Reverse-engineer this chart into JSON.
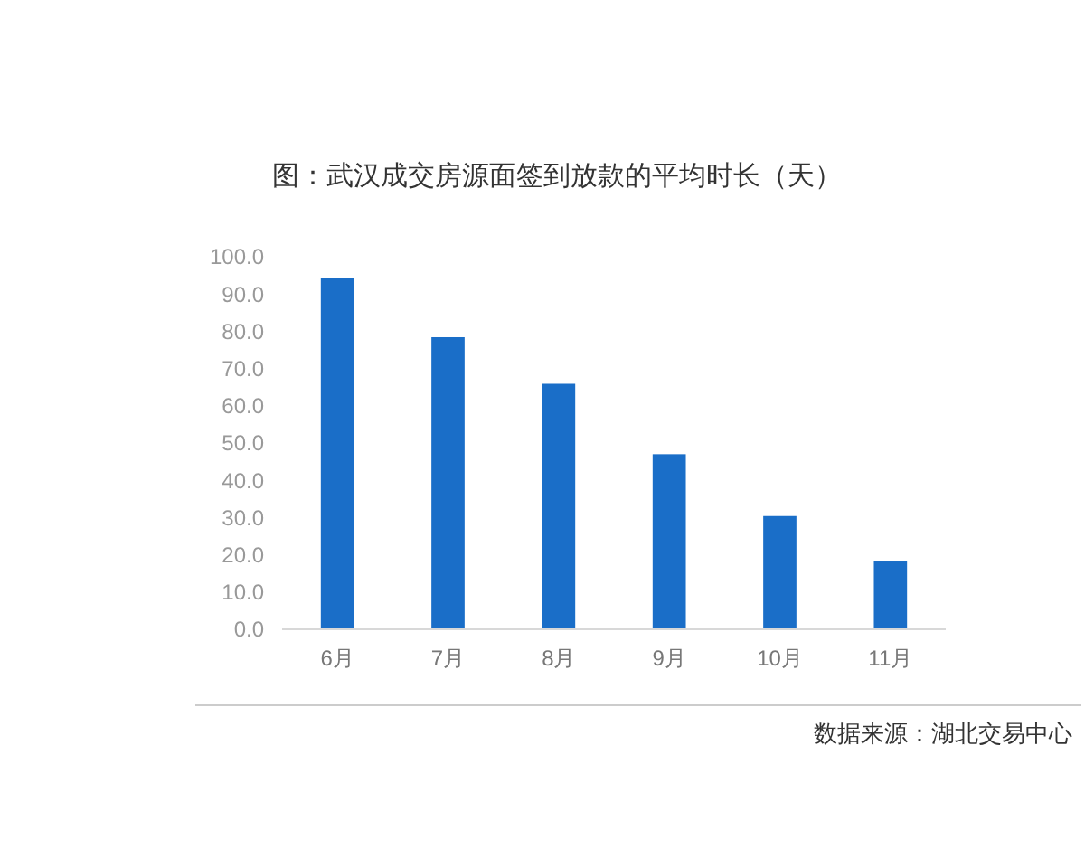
{
  "chart_data": {
    "type": "bar",
    "title": "图：武汉成交房源面签到放款的平均时长（天）",
    "categories": [
      "6月",
      "7月",
      "8月",
      "9月",
      "10月",
      "11月"
    ],
    "values": [
      94.3,
      78.4,
      65.9,
      47.0,
      30.4,
      18.2
    ],
    "color": "#1a6ec8",
    "ylim": [
      0,
      100
    ],
    "yticks": [
      {
        "value": 0,
        "label": "0.0"
      },
      {
        "value": 10,
        "label": "10.0"
      },
      {
        "value": 20,
        "label": "20.0"
      },
      {
        "value": 30,
        "label": "30.0"
      },
      {
        "value": 40,
        "label": "40.0"
      },
      {
        "value": 50,
        "label": "50.0"
      },
      {
        "value": 60,
        "label": "60.0"
      },
      {
        "value": 70,
        "label": "70.0"
      },
      {
        "value": 80,
        "label": "80.0"
      },
      {
        "value": 90,
        "label": "90.0"
      },
      {
        "value": 100,
        "label": "100.0"
      }
    ],
    "annotations": [
      "数据来源：湖北交易中心"
    ]
  }
}
